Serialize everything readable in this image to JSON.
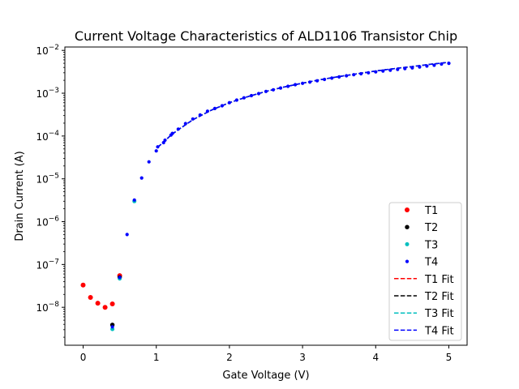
{
  "chart_data": {
    "type": "scatter",
    "title": "Current Voltage Characteristics of ALD1106 Transistor Chip",
    "xlabel": "Gate Voltage (V)",
    "ylabel": "Drain Current (A)",
    "xlim": [
      -0.25,
      5.25
    ],
    "ylim": [
      1.3e-09,
      0.012
    ],
    "yscale": "log",
    "grid": false,
    "legend_position": "lower-right",
    "xticks": [
      {
        "value": 0,
        "label": "0"
      },
      {
        "value": 1,
        "label": "1"
      },
      {
        "value": 2,
        "label": "2"
      },
      {
        "value": 3,
        "label": "3"
      },
      {
        "value": 4,
        "label": "4"
      },
      {
        "value": 5,
        "label": "5"
      }
    ],
    "yticks": [
      {
        "value": 1e-08,
        "base": "10",
        "exp": "−8"
      },
      {
        "value": 1e-07,
        "base": "10",
        "exp": "−7"
      },
      {
        "value": 1e-06,
        "base": "10",
        "exp": "−6"
      },
      {
        "value": 1e-05,
        "base": "10",
        "exp": "−5"
      },
      {
        "value": 0.0001,
        "base": "10",
        "exp": "−4"
      },
      {
        "value": 0.001,
        "base": "10",
        "exp": "−3"
      },
      {
        "value": 0.01,
        "base": "10",
        "exp": "−2"
      }
    ],
    "series": [
      {
        "name": "T1",
        "kind": "points",
        "color": "#ff0000",
        "x": [
          0.0,
          0.1,
          0.2,
          0.3,
          0.4,
          0.5
        ],
        "y": [
          3.3e-08,
          1.7e-08,
          1.25e-08,
          1e-08,
          1.2e-08,
          5.5e-08
        ]
      },
      {
        "name": "T2",
        "kind": "points",
        "color": "#000000",
        "x": [
          0.4,
          0.5
        ],
        "y": [
          3.9e-09,
          5e-08
        ]
      },
      {
        "name": "T3",
        "kind": "points",
        "color": "#00bfbf",
        "x": [
          0.4,
          0.5,
          0.7
        ],
        "y": [
          3.1e-09,
          4.7e-08,
          3e-06
        ]
      },
      {
        "name": "T4",
        "kind": "points",
        "color": "#0000ff",
        "x": [
          0.4,
          0.5,
          0.6,
          0.7,
          0.8,
          0.9,
          1.0,
          1.02,
          1.1,
          1.12,
          1.2,
          1.22,
          1.3,
          1.4,
          1.5,
          1.6,
          1.7,
          1.8,
          1.9,
          2.0,
          2.1,
          2.2,
          2.3,
          2.4,
          2.5,
          2.6,
          2.7,
          2.8,
          2.9,
          3.0,
          3.1,
          3.2,
          3.3,
          3.4,
          3.5,
          3.6,
          3.7,
          3.8,
          3.9,
          4.0,
          4.1,
          4.2,
          4.3,
          4.4,
          4.5,
          4.6,
          4.7,
          4.8,
          4.9,
          5.0
        ],
        "y": [
          3.5e-09,
          5e-08,
          5e-07,
          3.2e-06,
          1.05e-05,
          2.5e-05,
          4.5e-05,
          5.6e-05,
          7e-05,
          8e-05,
          0.000105,
          0.000115,
          0.000145,
          0.000195,
          0.00025,
          0.00031,
          0.00038,
          0.00044,
          0.00051,
          0.0006,
          0.00069,
          0.00078,
          0.00088,
          0.00098,
          0.0011,
          0.0012,
          0.00132,
          0.00145,
          0.00158,
          0.0017,
          0.00182,
          0.00195,
          0.0021,
          0.00225,
          0.0024,
          0.00255,
          0.0027,
          0.00285,
          0.003,
          0.00315,
          0.0033,
          0.00345,
          0.0036,
          0.00375,
          0.0039,
          0.0041,
          0.0043,
          0.0045,
          0.0048,
          0.005
        ]
      },
      {
        "name": "T1 Fit",
        "kind": "dashed-line",
        "color": "#ff0000",
        "x": [
          1.02,
          1.1,
          1.2,
          1.3,
          1.5,
          1.75,
          2.0,
          2.25,
          2.5,
          2.75,
          3.0,
          3.25,
          3.5,
          3.75,
          4.0,
          4.25,
          4.5,
          4.75,
          5.0
        ],
        "y": [
          5.5e-05,
          7.2e-05,
          0.000105,
          0.00014,
          0.00024,
          0.0004,
          0.0006,
          0.00083,
          0.0011,
          0.0014,
          0.00172,
          0.00208,
          0.00245,
          0.00285,
          0.0033,
          0.00375,
          0.0042,
          0.00475,
          0.0053
        ]
      },
      {
        "name": "T2 Fit",
        "kind": "dashed-line",
        "color": "#000000",
        "x": [
          1.02,
          1.1,
          1.2,
          1.3,
          1.5,
          1.75,
          2.0,
          2.25,
          2.5,
          2.75,
          3.0,
          3.25,
          3.5,
          3.75,
          4.0,
          4.25,
          4.5,
          4.75,
          5.0
        ],
        "y": [
          5.5e-05,
          7.2e-05,
          0.000105,
          0.00014,
          0.00024,
          0.0004,
          0.0006,
          0.00083,
          0.0011,
          0.0014,
          0.00172,
          0.00208,
          0.00245,
          0.00285,
          0.0033,
          0.00375,
          0.0042,
          0.00475,
          0.0053
        ]
      },
      {
        "name": "T3 Fit",
        "kind": "dashed-line",
        "color": "#00bfbf",
        "x": [
          1.02,
          1.1,
          1.2,
          1.3,
          1.5,
          1.75,
          2.0,
          2.25,
          2.5,
          2.75,
          3.0,
          3.25,
          3.5,
          3.75,
          4.0,
          4.25,
          4.5,
          4.75,
          5.0
        ],
        "y": [
          5.5e-05,
          7.2e-05,
          0.000105,
          0.00014,
          0.00024,
          0.0004,
          0.0006,
          0.00083,
          0.0011,
          0.0014,
          0.00172,
          0.00208,
          0.00245,
          0.00285,
          0.0033,
          0.00375,
          0.0042,
          0.00475,
          0.0053
        ]
      },
      {
        "name": "T4 Fit",
        "kind": "dashed-line",
        "color": "#0000ff",
        "x": [
          1.02,
          1.1,
          1.2,
          1.3,
          1.5,
          1.75,
          2.0,
          2.25,
          2.5,
          2.75,
          3.0,
          3.25,
          3.5,
          3.75,
          4.0,
          4.25,
          4.5,
          4.75,
          5.0
        ],
        "y": [
          5.5e-05,
          7.2e-05,
          0.000105,
          0.00014,
          0.00024,
          0.0004,
          0.0006,
          0.00083,
          0.0011,
          0.0014,
          0.00172,
          0.00208,
          0.00245,
          0.00285,
          0.0033,
          0.00375,
          0.0042,
          0.00475,
          0.0053
        ]
      }
    ]
  }
}
